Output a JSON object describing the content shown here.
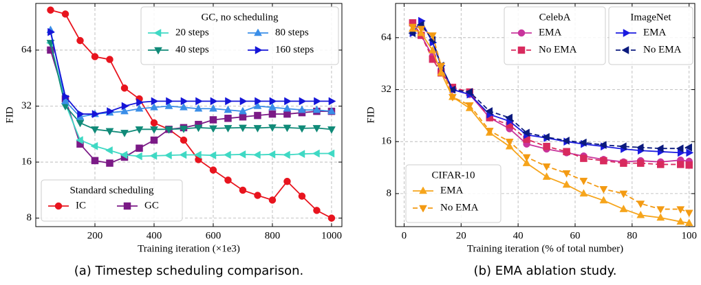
{
  "chart_data": [
    {
      "type": "line",
      "caption": "(a) Timestep scheduling comparison.",
      "xlabel": "Training iteration (×1e3)",
      "ylabel": "FID",
      "yscale": "log",
      "grid": true,
      "x": [
        50,
        100,
        150,
        200,
        250,
        300,
        350,
        400,
        450,
        500,
        550,
        600,
        650,
        700,
        750,
        800,
        850,
        900,
        950,
        1000
      ],
      "xlim": [
        0,
        1035
      ],
      "xticks": [
        200,
        400,
        600,
        800,
        1000
      ],
      "ylim": [
        7.2,
        114
      ],
      "yticks": [
        8,
        16,
        32,
        64
      ],
      "groups": [
        {
          "title": "Standard scheduling",
          "loc": "lower left",
          "series": [
            {
              "name": "IC",
              "color": "#e8141e",
              "marker": "circle",
              "linestyle": "solid",
              "values": [
                105,
                100,
                72,
                59,
                57,
                40,
                35,
                26,
                24,
                21,
                16.5,
                14.5,
                12.8,
                11.3,
                10.6,
                10,
                12.6,
                10.5,
                8.8,
                8
              ]
            },
            {
              "name": "GC",
              "color": "#7b1a86",
              "marker": "square",
              "linestyle": "solid",
              "values": [
                64,
                35,
                20,
                16.3,
                15.8,
                17,
                19,
                21,
                24,
                24.5,
                25.5,
                27,
                27.5,
                28,
                28.5,
                29,
                29,
                29.5,
                30,
                30
              ]
            }
          ]
        },
        {
          "title": "GC, no scheduling",
          "loc": "upper right",
          "series": [
            {
              "name": "20 steps",
              "color": "#3fd9c4",
              "marker": "left-triangle",
              "linestyle": "solid",
              "values": [
                70,
                33,
                21,
                19.5,
                18.5,
                17.5,
                17.2,
                17.3,
                17.4,
                17.5,
                17.5,
                17.4,
                17.5,
                17.6,
                17.5,
                17.6,
                17.5,
                17.7,
                17.8,
                17.8
              ]
            },
            {
              "name": "40 steps",
              "color": "#108a78",
              "marker": "down-triangle",
              "linestyle": "solid",
              "values": [
                70,
                32,
                26,
                24,
                23.5,
                23,
                24,
                24,
                24,
                24.2,
                24.5,
                24.3,
                24.4,
                24.5,
                24.4,
                24.6,
                24.5,
                24.3,
                24.4,
                24
              ]
            },
            {
              "name": "80 steps",
              "color": "#3a8ee8",
              "marker": "up-triangle",
              "linestyle": "solid",
              "values": [
                82,
                34,
                28,
                29,
                29.5,
                30,
                31,
                31.5,
                32,
                31.5,
                31,
                31,
                30.5,
                30,
                32,
                31.5,
                31,
                30.5,
                30.5,
                30
              ]
            },
            {
              "name": "160 steps",
              "color": "#1515d8",
              "marker": "right-triangle",
              "linestyle": "solid",
              "values": [
                80,
                36,
                29,
                29,
                30,
                32,
                33.5,
                34,
                34,
                34,
                34,
                34,
                34,
                34,
                34,
                34,
                34,
                34,
                34,
                34
              ]
            }
          ]
        }
      ]
    },
    {
      "type": "line",
      "caption": "(b) EMA ablation study.",
      "xlabel": "Training iteration (% of total number)",
      "ylabel": "FID",
      "yscale": "log",
      "grid": true,
      "x": [
        3,
        6,
        10,
        13,
        17,
        23,
        30,
        37,
        43,
        50,
        57,
        63,
        70,
        77,
        83,
        90,
        97,
        100
      ],
      "xlim": [
        -3,
        102
      ],
      "xticks": [
        0,
        20,
        40,
        60,
        80,
        100
      ],
      "ylim": [
        5.15,
        101
      ],
      "yticks": [
        8,
        16,
        32,
        64
      ],
      "groups": [
        {
          "title": "CelebA",
          "loc": "upper center",
          "series": [
            {
              "name": "EMA",
              "color": "#c8349c",
              "marker": "circle",
              "linestyle": "solid",
              "values": [
                78,
                66,
                50,
                42,
                32,
                30,
                22,
                19,
                15.5,
                14.5,
                13.8,
                13.2,
                12.6,
                12.2,
                12.4,
                12.2,
                12.5,
                12.3
              ]
            },
            {
              "name": "No EMA",
              "color": "#d82a5e",
              "marker": "square",
              "linestyle": "dashed",
              "values": [
                78,
                66,
                48,
                40,
                33,
                31,
                22,
                20,
                16.5,
                15,
                14,
                12.8,
                12.4,
                12,
                12,
                11.8,
                11.8,
                11.7
              ]
            }
          ]
        },
        {
          "title": "ImageNet",
          "loc": "upper right",
          "series": [
            {
              "name": "EMA",
              "color": "#1a1ae0",
              "marker": "right-triangle",
              "linestyle": "solid",
              "values": [
                68,
                80,
                60,
                44,
                32,
                30,
                23,
                21,
                17.5,
                16.8,
                16,
                15.5,
                15,
                14.5,
                14.2,
                14,
                13.8,
                13.8
              ]
            },
            {
              "name": "No EMA",
              "color": "#0b1a7e",
              "marker": "left-triangle",
              "linestyle": "dashed",
              "values": [
                68,
                76,
                62,
                44,
                32,
                31,
                24,
                22,
                18,
                17,
                16.2,
                15.8,
                15.3,
                15,
                14.8,
                14.6,
                14.6,
                14.8
              ]
            }
          ]
        },
        {
          "title": "CIFAR-10",
          "loc": "lower left",
          "series": [
            {
              "name": "EMA",
              "color": "#f6a51c",
              "marker": "up-triangle",
              "linestyle": "solid",
              "values": [
                72,
                68,
                54,
                40,
                29,
                25,
                18,
                15,
                12,
                10,
                9,
                8,
                7.3,
                6.5,
                6,
                5.8,
                5.5,
                5.4
              ]
            },
            {
              "name": "No EMA",
              "color": "#f39a12",
              "marker": "down-triangle",
              "linestyle": "dashed",
              "values": [
                74,
                72,
                66,
                44,
                29,
                26,
                18.5,
                16,
                13,
                11.5,
                10.5,
                9.5,
                8.5,
                8,
                7,
                6.5,
                6.5,
                6.2
              ]
            }
          ]
        }
      ]
    }
  ]
}
